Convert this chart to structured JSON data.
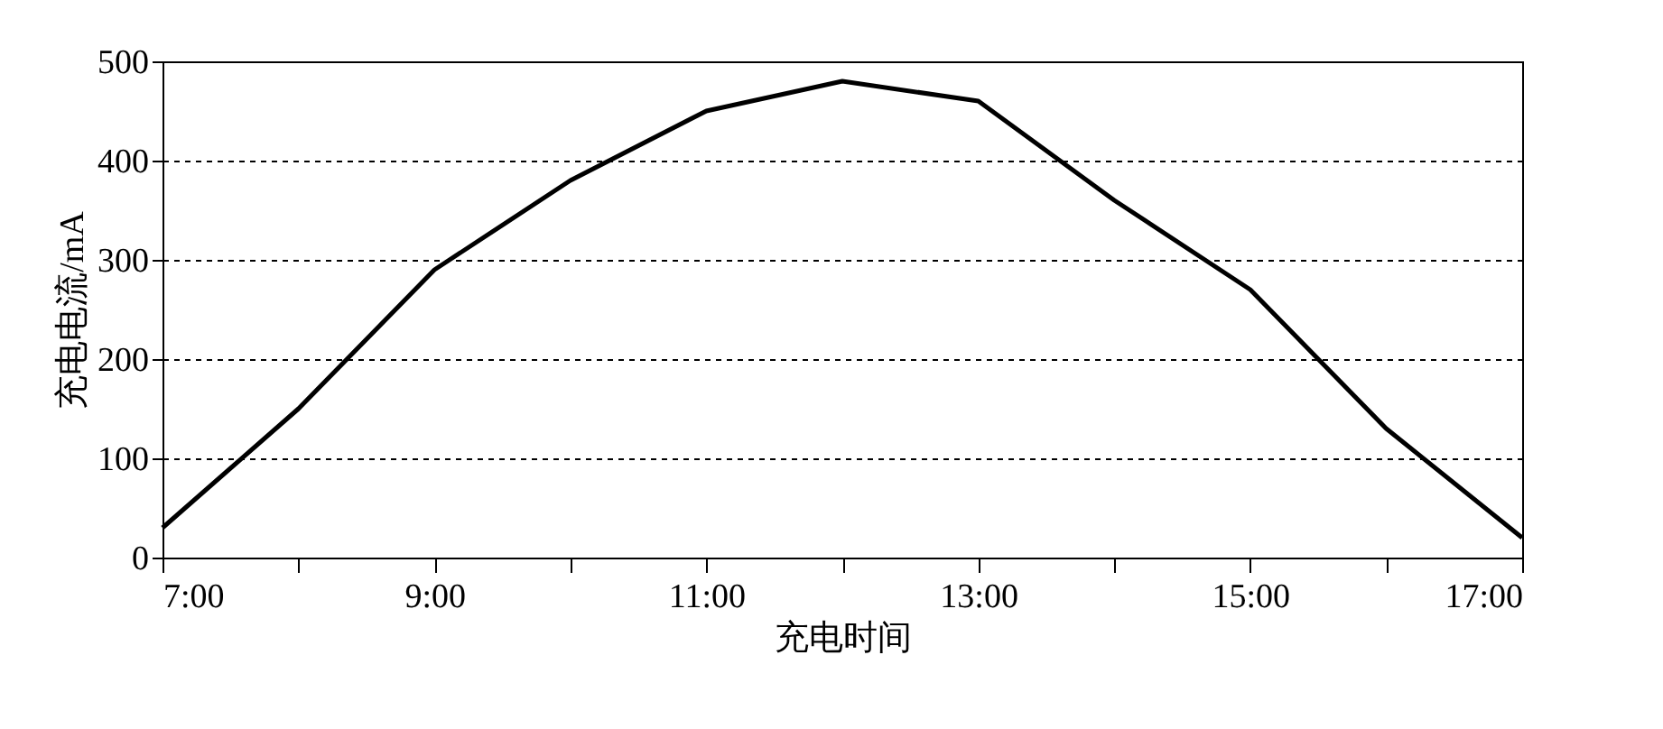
{
  "chart_data": {
    "type": "line",
    "xlabel": "充电时间",
    "ylabel": "充电电流/mA",
    "x": [
      7,
      8,
      9,
      10,
      11,
      12,
      13,
      14,
      15,
      16,
      17
    ],
    "series": [
      {
        "color": "#000000",
        "values": [
          30,
          150,
          290,
          380,
          450,
          480,
          460,
          360,
          270,
          130,
          20
        ]
      }
    ],
    "xlim": [
      7,
      17
    ],
    "xticks": [
      {
        "value": 7,
        "label": "7:00"
      },
      {
        "value": 8,
        "label": null
      },
      {
        "value": 9,
        "label": "9:00"
      },
      {
        "value": 10,
        "label": null
      },
      {
        "value": 11,
        "label": "11:00"
      },
      {
        "value": 12,
        "label": null
      },
      {
        "value": 13,
        "label": "13:00"
      },
      {
        "value": 14,
        "label": null
      },
      {
        "value": 15,
        "label": "15:00"
      },
      {
        "value": 16,
        "label": null
      },
      {
        "value": 17,
        "label": "17:00"
      }
    ],
    "ylim": [
      0,
      500
    ],
    "yticks": [
      0,
      100,
      200,
      300,
      400,
      500
    ],
    "grid": "y",
    "line_style": "solid",
    "marker": "none"
  }
}
